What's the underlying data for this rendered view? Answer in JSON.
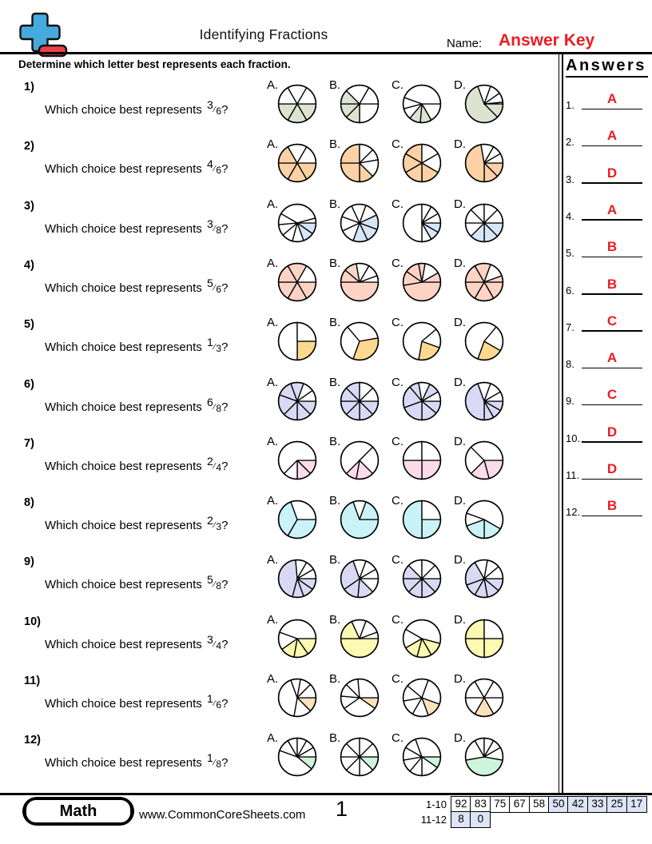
{
  "header": {
    "title": "Identifying Fractions",
    "name_label": "Name:",
    "name_value": "Answer Key"
  },
  "instruction": "Determine which letter best represents each fraction.",
  "answers": {
    "title": "Answers",
    "items": [
      {
        "num": "1.",
        "letter": "A"
      },
      {
        "num": "2.",
        "letter": "A"
      },
      {
        "num": "3.",
        "letter": "D"
      },
      {
        "num": "4.",
        "letter": "A"
      },
      {
        "num": "5.",
        "letter": "B"
      },
      {
        "num": "6.",
        "letter": "B"
      },
      {
        "num": "7.",
        "letter": "C"
      },
      {
        "num": "8.",
        "letter": "A"
      },
      {
        "num": "9.",
        "letter": "C"
      },
      {
        "num": "10.",
        "letter": "D"
      },
      {
        "num": "11.",
        "letter": "D"
      },
      {
        "num": "12.",
        "letter": "B"
      }
    ]
  },
  "questions": [
    {
      "num": "1)",
      "prompt": "Which choice best represents",
      "numerator": "3",
      "denominator": "6",
      "suffix": "?",
      "color": "#dce3d1",
      "options": [
        {
          "label": "A.",
          "angles": [
            0,
            60,
            120,
            180,
            240,
            300
          ],
          "shaded": [
            0,
            1,
            2
          ]
        },
        {
          "label": "B.",
          "angles": [
            0,
            90,
            135,
            180,
            225,
            300
          ],
          "shaded": [
            1,
            2,
            3
          ]
        },
        {
          "label": "C.",
          "angles": [
            0,
            60,
            95,
            130,
            165,
            200
          ],
          "shaded": [
            1,
            2
          ]
        },
        {
          "label": "D.",
          "angles": [
            0,
            45,
            250,
            290,
            325,
            355
          ],
          "shaded": [
            0,
            1
          ]
        }
      ]
    },
    {
      "num": "2)",
      "prompt": "Which choice best represents",
      "numerator": "4",
      "denominator": "6",
      "suffix": "?",
      "color": "#fbd1a5",
      "options": [
        {
          "label": "A.",
          "angles": [
            0,
            60,
            120,
            180,
            240,
            300
          ],
          "shaded": [
            0,
            1,
            2,
            3
          ]
        },
        {
          "label": "B.",
          "angles": [
            45,
            90,
            180,
            270,
            315,
            350
          ],
          "shaded": [
            0,
            1,
            2
          ]
        },
        {
          "label": "C.",
          "angles": [
            30,
            90,
            150,
            210,
            270,
            330
          ],
          "shaded": [
            0,
            1,
            2,
            3
          ]
        },
        {
          "label": "D.",
          "angles": [
            0,
            45,
            90,
            260,
            300,
            330
          ],
          "shaded": [
            0,
            1,
            2
          ]
        }
      ]
    },
    {
      "num": "3)",
      "prompt": "Which choice best represents",
      "numerator": "3",
      "denominator": "8",
      "suffix": "?",
      "color": "#d6e6f8",
      "options": [
        {
          "label": "A.",
          "angles": [
            0,
            35,
            70,
            105,
            140,
            175,
            210,
            345
          ],
          "shaded": [
            0,
            1
          ]
        },
        {
          "label": "B.",
          "angles": [
            20,
            65,
            110,
            155,
            200,
            245,
            290,
            335
          ],
          "shaded": [
            0,
            1,
            7
          ]
        },
        {
          "label": "C.",
          "angles": [
            0,
            30,
            60,
            90,
            270,
            300,
            330
          ],
          "shaded": [
            0,
            1
          ]
        },
        {
          "label": "D.",
          "angles": [
            0,
            45,
            90,
            135,
            180,
            225,
            270,
            315
          ],
          "shaded": [
            0,
            1,
            2
          ]
        }
      ]
    },
    {
      "num": "4)",
      "prompt": "Which choice best represents",
      "numerator": "5",
      "denominator": "6",
      "suffix": "?",
      "color": "#fdd3c6",
      "options": [
        {
          "label": "A.",
          "angles": [
            0,
            60,
            120,
            180,
            240,
            300
          ],
          "shaded": [
            0,
            1,
            2,
            3,
            4
          ]
        },
        {
          "label": "B.",
          "angles": [
            0,
            180,
            220,
            260,
            300,
            340
          ],
          "shaded": [
            0,
            1,
            2
          ]
        },
        {
          "label": "C.",
          "angles": [
            0,
            170,
            215,
            260,
            280,
            330
          ],
          "shaded": [
            0,
            1,
            2,
            3,
            5
          ]
        },
        {
          "label": "D.",
          "angles": [
            0,
            60,
            120,
            180,
            240,
            290,
            340
          ],
          "shaded": [
            0,
            1,
            2,
            3,
            4,
            6
          ]
        }
      ]
    },
    {
      "num": "5)",
      "prompt": "Which choice best represents",
      "numerator": "1",
      "denominator": "3",
      "suffix": "?",
      "color": "#fcd98e",
      "options": [
        {
          "label": "A.",
          "angles": [
            0,
            90,
            270
          ],
          "shaded": [
            0
          ]
        },
        {
          "label": "B.",
          "angles": [
            110,
            230,
            350
          ],
          "shaded": [
            2
          ]
        },
        {
          "label": "C.",
          "angles": [
            20,
            100,
            320
          ],
          "shaded": [
            0
          ]
        },
        {
          "label": "D.",
          "angles": [
            30,
            110,
            310
          ],
          "shaded": [
            0
          ]
        }
      ]
    },
    {
      "num": "6)",
      "prompt": "Which choice best represents",
      "numerator": "6",
      "denominator": "8",
      "suffix": "?",
      "color": "#d9d9f6",
      "options": [
        {
          "label": "A.",
          "angles": [
            0,
            45,
            90,
            135,
            200,
            250,
            290,
            325
          ],
          "shaded": [
            0,
            1,
            2,
            3,
            4,
            5
          ]
        },
        {
          "label": "B.",
          "angles": [
            0,
            45,
            90,
            135,
            180,
            225,
            270,
            315
          ],
          "shaded": [
            0,
            1,
            2,
            3,
            4,
            5
          ]
        },
        {
          "label": "C.",
          "angles": [
            0,
            40,
            90,
            160,
            230,
            260,
            295,
            330
          ],
          "shaded": [
            0,
            1,
            2,
            3,
            4,
            6
          ]
        },
        {
          "label": "D.",
          "angles": [
            0,
            30,
            60,
            90,
            250,
            290,
            330
          ],
          "shaded": [
            0,
            1,
            2,
            3
          ]
        }
      ]
    },
    {
      "num": "7)",
      "prompt": "Which choice best represents",
      "numerator": "2",
      "denominator": "4",
      "suffix": "?",
      "color": "#fcdcea",
      "options": [
        {
          "label": "A.",
          "angles": [
            0,
            45,
            90,
            135
          ],
          "shaded": [
            0,
            1
          ]
        },
        {
          "label": "B.",
          "angles": [
            45,
            100,
            135,
            315
          ],
          "shaded": [
            0,
            1
          ]
        },
        {
          "label": "C.",
          "angles": [
            0,
            90,
            180,
            270
          ],
          "shaded": [
            0,
            1
          ]
        },
        {
          "label": "D.",
          "angles": [
            0,
            75,
            135,
            225
          ],
          "shaded": [
            0,
            1
          ]
        }
      ]
    },
    {
      "num": "8)",
      "prompt": "Which choice best represents",
      "numerator": "2",
      "denominator": "3",
      "suffix": "?",
      "color": "#c9f3f7",
      "options": [
        {
          "label": "A.",
          "angles": [
            0,
            120,
            250
          ],
          "shaded": [
            0,
            1
          ]
        },
        {
          "label": "B.",
          "angles": [
            0,
            250,
            290
          ],
          "shaded": [
            0,
            2
          ]
        },
        {
          "label": "C.",
          "angles": [
            0,
            90,
            270
          ],
          "shaded": [
            0,
            1
          ]
        },
        {
          "label": "D.",
          "angles": [
            30,
            90,
            160,
            200
          ],
          "shaded": [
            0,
            1
          ]
        }
      ]
    },
    {
      "num": "9)",
      "prompt": "Which choice best represents",
      "numerator": "5",
      "denominator": "8",
      "suffix": "?",
      "color": "#d9d9f4",
      "options": [
        {
          "label": "A.",
          "angles": [
            0,
            35,
            70,
            105,
            265,
            300,
            330
          ],
          "shaded": [
            0,
            1,
            2,
            3
          ]
        },
        {
          "label": "B.",
          "angles": [
            0,
            45,
            95,
            145,
            250,
            290,
            330
          ],
          "shaded": [
            1,
            2,
            3
          ]
        },
        {
          "label": "C.",
          "angles": [
            0,
            45,
            90,
            135,
            180,
            225,
            270,
            315
          ],
          "shaded": [
            0,
            1,
            2,
            3,
            4
          ]
        },
        {
          "label": "D.",
          "angles": [
            0,
            40,
            80,
            120,
            160,
            240,
            280,
            320
          ],
          "shaded": [
            0,
            1,
            2,
            3,
            4
          ]
        }
      ]
    },
    {
      "num": "10)",
      "prompt": "Which choice best represents",
      "numerator": "3",
      "denominator": "4",
      "suffix": "?",
      "color": "#fdf9b2",
      "options": [
        {
          "label": "A.",
          "angles": [
            0,
            55,
            100,
            145,
            200
          ],
          "shaded": [
            0,
            1,
            2
          ]
        },
        {
          "label": "B.",
          "angles": [
            0,
            180,
            245,
            290,
            340
          ],
          "shaded": [
            0,
            1
          ]
        },
        {
          "label": "C.",
          "angles": [
            15,
            60,
            105,
            150,
            210
          ],
          "shaded": [
            0,
            1,
            2
          ]
        },
        {
          "label": "D.",
          "angles": [
            0,
            90,
            180,
            270
          ],
          "shaded": [
            0,
            1,
            2
          ]
        }
      ]
    },
    {
      "num": "11)",
      "prompt": "Which choice best represents",
      "numerator": "1",
      "denominator": "6",
      "suffix": "?",
      "color": "#fde0bc",
      "options": [
        {
          "label": "A.",
          "angles": [
            0,
            45,
            100,
            250,
            280,
            315
          ],
          "shaded": [
            0
          ]
        },
        {
          "label": "B.",
          "angles": [
            0,
            35,
            145,
            185,
            225,
            265
          ],
          "shaded": [
            0
          ]
        },
        {
          "label": "C.",
          "angles": [
            20,
            70,
            120,
            170,
            220,
            290
          ],
          "shaded": [
            0
          ]
        },
        {
          "label": "D.",
          "angles": [
            0,
            60,
            120,
            180,
            240,
            300
          ],
          "shaded": [
            1
          ]
        }
      ]
    },
    {
      "num": "12)",
      "prompt": "Which choice best represents",
      "numerator": "1",
      "denominator": "8",
      "suffix": "?",
      "color": "#cdf5d9",
      "options": [
        {
          "label": "A.",
          "angles": [
            0,
            40,
            200,
            240,
            270,
            300,
            330
          ],
          "shaded": [
            0
          ]
        },
        {
          "label": "B.",
          "angles": [
            0,
            45,
            90,
            135,
            180,
            225,
            270,
            315
          ],
          "shaded": [
            0
          ]
        },
        {
          "label": "C.",
          "angles": [
            0,
            35,
            90,
            130,
            170,
            210,
            250
          ],
          "shaded": [
            0
          ]
        },
        {
          "label": "D.",
          "angles": [
            10,
            170,
            240,
            270,
            300,
            330
          ],
          "shaded": [
            0
          ]
        }
      ]
    }
  ],
  "footer": {
    "subject": "Math",
    "website": "www.CommonCoreSheets.com",
    "page": "1",
    "scores": [
      {
        "label": "1-10",
        "cells": [
          {
            "v": "92",
            "hl": false
          },
          {
            "v": "83",
            "hl": false
          },
          {
            "v": "75",
            "hl": false
          },
          {
            "v": "67",
            "hl": false
          },
          {
            "v": "58",
            "hl": false
          },
          {
            "v": "50",
            "hl": true
          },
          {
            "v": "42",
            "hl": true
          },
          {
            "v": "33",
            "hl": true
          },
          {
            "v": "25",
            "hl": true
          },
          {
            "v": "17",
            "hl": true
          }
        ]
      },
      {
        "label": "11-12",
        "cells": [
          {
            "v": "8",
            "hl": true
          },
          {
            "v": "0",
            "hl": true
          }
        ]
      }
    ]
  },
  "colors": {
    "accent_red": "#ed1c24",
    "cell_highlight": "#dce4f5",
    "logo_blue": "#45aadd",
    "logo_red": "#ef4045"
  }
}
